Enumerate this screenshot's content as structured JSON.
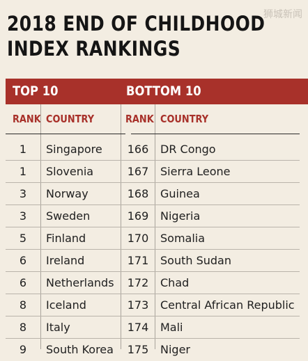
{
  "title_line1": "2018 END OF CHILDHOOD",
  "title_line2": "INDEX RANKINGS",
  "watermark": "狮城新闻",
  "sections": {
    "top": "TOP 10",
    "bottom": "BOTTOM 10"
  },
  "headers": {
    "rank": "RANK",
    "country": "COUNTRY"
  },
  "rows": [
    {
      "rank": "1",
      "country": "Singapore",
      "b_rank": "166",
      "b_country": "DR Congo"
    },
    {
      "rank": "1",
      "country": "Slovenia",
      "b_rank": "167",
      "b_country": "Sierra Leone"
    },
    {
      "rank": "3",
      "country": "Norway",
      "b_rank": "168",
      "b_country": "Guinea"
    },
    {
      "rank": "3",
      "country": "Sweden",
      "b_rank": "169",
      "b_country": "Nigeria"
    },
    {
      "rank": "5",
      "country": "Finland",
      "b_rank": "170",
      "b_country": "Somalia"
    },
    {
      "rank": "6",
      "country": "Ireland",
      "b_rank": "171",
      "b_country": "South Sudan"
    },
    {
      "rank": "6",
      "country": "Netherlands",
      "b_rank": "172",
      "b_country": "Chad"
    },
    {
      "rank": "8",
      "country": "Iceland",
      "b_rank": "173",
      "b_country": "Central African Republic"
    },
    {
      "rank": "8",
      "country": "Italy",
      "b_rank": "174",
      "b_country": "Mali"
    },
    {
      "rank": "9",
      "country": "South Korea",
      "b_rank": "175",
      "b_country": "Niger"
    }
  ]
}
